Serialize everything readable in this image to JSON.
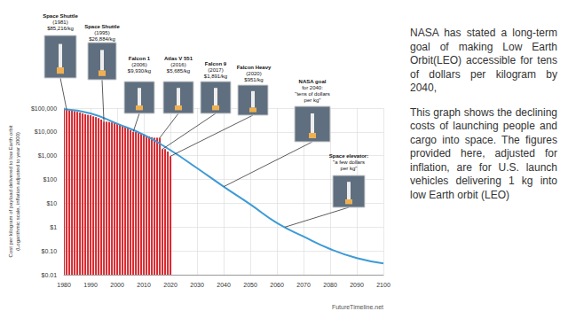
{
  "chart_data": {
    "type": "bar",
    "y_label": "Cost per kilogram of payload delivered to low Earth orbit\n(Logarithmic scale, inflation adjusted to year 2000)",
    "source": "FutureTimeline.net",
    "log": "y",
    "grid": true,
    "xlim": [
      1980,
      2100
    ],
    "xticks": [
      1980,
      1990,
      2000,
      2010,
      2020,
      2030,
      2040,
      2050,
      2060,
      2070,
      2080,
      2090,
      2100
    ],
    "ylim": [
      0.01,
      100000
    ],
    "yticks": [
      {
        "value": 0.01,
        "label": "$0.01"
      },
      {
        "value": 0.1,
        "label": "$0.10"
      },
      {
        "value": 1,
        "label": "$1"
      },
      {
        "value": 10,
        "label": "$10"
      },
      {
        "value": 100,
        "label": "$100"
      },
      {
        "value": 1000,
        "label": "$1,000"
      },
      {
        "value": 10000,
        "label": "$10,000"
      },
      {
        "value": 100000,
        "label": "$100,000"
      }
    ],
    "series": [
      {
        "type": "bar",
        "color": "#d7262d",
        "x": [
          1980,
          1981,
          1982,
          1983,
          1984,
          1985,
          1986,
          1987,
          1988,
          1989,
          1990,
          1991,
          1992,
          1993,
          1994,
          1995,
          1996,
          1997,
          1998,
          1999,
          2000,
          2001,
          2002,
          2003,
          2004,
          2005,
          2006,
          2007,
          2008,
          2009,
          2010,
          2011,
          2012,
          2013,
          2014,
          2015,
          2016,
          2017,
          2018,
          2019,
          2020
        ],
        "values": [
          85000,
          85000,
          80000,
          78000,
          75000,
          70000,
          65000,
          60000,
          55000,
          52000,
          50000,
          45000,
          42000,
          38000,
          33000,
          27000,
          27000,
          26000,
          25000,
          24000,
          22000,
          20000,
          18000,
          16000,
          14000,
          12000,
          9900,
          9900,
          9500,
          9000,
          8000,
          7000,
          6500,
          6000,
          5700,
          5700,
          5700,
          1900,
          1900,
          1500,
          950
        ]
      },
      {
        "type": "line",
        "color": "#3d9bd6",
        "x": [
          1980,
          1990,
          2000,
          2010,
          2020,
          2030,
          2040,
          2050,
          2060,
          2070,
          2080,
          2090,
          2100
        ],
        "values": [
          90000,
          60000,
          22000,
          7500,
          1700,
          300,
          50,
          9,
          1.5,
          0.4,
          0.12,
          0.05,
          0.03
        ]
      }
    ],
    "annotations": [
      {
        "text": [
          "Space Shuttle",
          "(1981)",
          "$85,216/kg"
        ],
        "x": 1981,
        "y": 85216
      },
      {
        "text": [
          "Space Shuttle",
          "(1995)",
          "$26,884/kg"
        ],
        "x": 1995,
        "y": 26884
      },
      {
        "text": [
          "Falcon 1",
          "(2006)",
          "$9,930/kg"
        ],
        "x": 2006,
        "y": 9930
      },
      {
        "text": [
          "Atlas V 551",
          "(2016)",
          "$5,685/kg"
        ],
        "x": 2016,
        "y": 5685
      },
      {
        "text": [
          "Falcon 9",
          "(2017)",
          "$1,891/kg"
        ],
        "x": 2017,
        "y": 1891
      },
      {
        "text": [
          "Falcon Heavy",
          "(2020)",
          "$951/kg"
        ],
        "x": 2020,
        "y": 951
      },
      {
        "text": [
          "NASA goal",
          "for 2040:",
          "\"tens of dollars",
          "per kg\""
        ],
        "x": 2040,
        "y": 50
      },
      {
        "text": [
          "Space elevator:",
          "\"a few dollars",
          "per kg\""
        ],
        "x": 2063,
        "y": 1
      }
    ]
  },
  "text_panel": {
    "paragraphs": [
      "NASA has stated a long-term goal of making Low Earth Orbit(LEO) accessible for tens of dollars per kilogram by 2040,",
      "This graph shows the declining costs of launching people and cargo into space. The figures provided here, adjusted for inflation, are for U.S. launch vehicles delivering 1 kg into low Earth orbit (LEO)"
    ]
  }
}
